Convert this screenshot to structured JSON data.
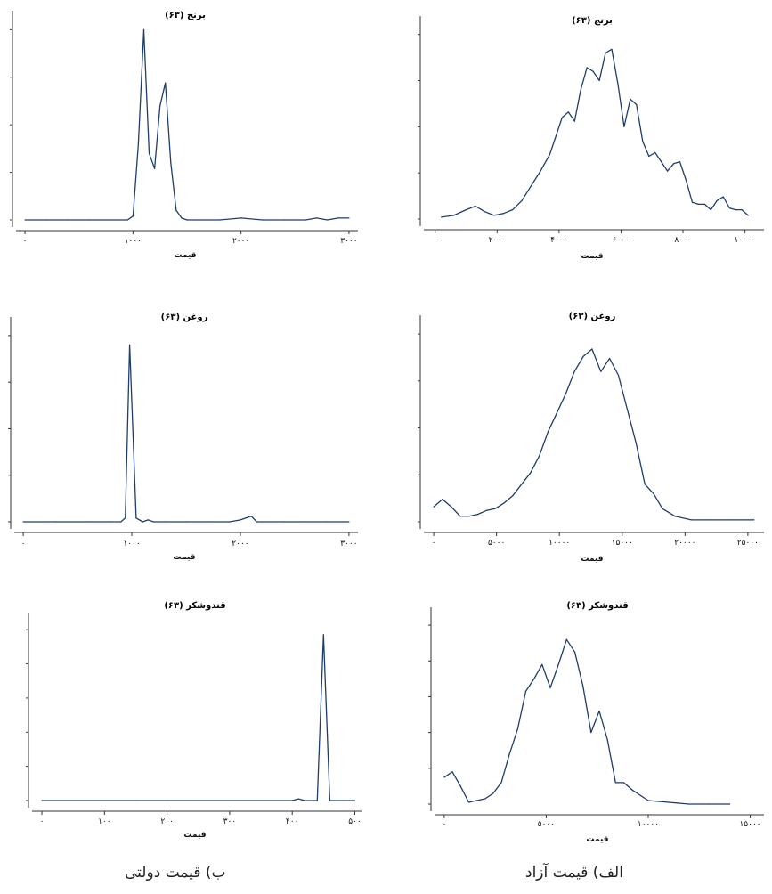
{
  "captions": {
    "left": "ب) قیمت دولتی",
    "right": "الف) قیمت آزاد"
  },
  "chart_data": [
    {
      "id": "rice-govt",
      "type": "line",
      "title": "برنج (۶۳)",
      "xlabel": "قیمت",
      "ylabel": "",
      "xlim": [
        -50,
        3050
      ],
      "ylim": [
        0,
        1.1
      ],
      "xticks": [
        0,
        1000,
        2000,
        3000
      ],
      "xtick_labels": [
        "۰",
        "۱۰۰۰",
        "۲۰۰۰",
        "۳۰۰۰"
      ],
      "yticks": [
        0,
        0.25,
        0.5,
        0.75,
        1.0
      ],
      "series": [
        {
          "x": [
            0,
            200,
            400,
            600,
            800,
            950,
            1000,
            1050,
            1100,
            1150,
            1200,
            1250,
            1300,
            1350,
            1400,
            1450,
            1500,
            1600,
            1800,
            2000,
            2200,
            2400,
            2600,
            2700,
            2800,
            2900,
            3000
          ],
          "y": [
            0.0,
            0.0,
            0.0,
            0.0,
            0.0,
            0.0,
            0.02,
            0.4,
            1.0,
            0.35,
            0.27,
            0.6,
            0.72,
            0.3,
            0.05,
            0.01,
            0.0,
            0.0,
            0.0,
            0.01,
            0.0,
            0.0,
            0.0,
            0.01,
            0.0,
            0.01,
            0.01
          ]
        }
      ]
    },
    {
      "id": "rice-free",
      "type": "line",
      "title": "برنج (۶۳)",
      "xlabel": "قیمت",
      "ylabel": "",
      "xlim": [
        -250,
        10500
      ],
      "ylim": [
        0,
        1.1
      ],
      "xticks": [
        0,
        2000,
        4000,
        6000,
        8000,
        10000
      ],
      "xtick_labels": [
        "۰",
        "۲۰۰۰",
        "۴۰۰۰",
        "۶۰۰۰",
        "۸۰۰۰",
        "۱۰۰۰۰"
      ],
      "yticks": [
        0,
        0.25,
        0.5,
        0.75,
        1.0
      ],
      "series": [
        {
          "x": [
            200,
            600,
            1000,
            1300,
            1600,
            1900,
            2200,
            2500,
            2800,
            3100,
            3400,
            3700,
            3900,
            4100,
            4300,
            4500,
            4700,
            4900,
            5100,
            5300,
            5500,
            5700,
            5900,
            6100,
            6300,
            6500,
            6700,
            6900,
            7100,
            7300,
            7500,
            7700,
            7900,
            8100,
            8300,
            8500,
            8700,
            8900,
            9100,
            9300,
            9500,
            9700,
            9900,
            10100
          ],
          "y": [
            0.01,
            0.02,
            0.05,
            0.07,
            0.04,
            0.02,
            0.03,
            0.05,
            0.1,
            0.18,
            0.26,
            0.35,
            0.45,
            0.55,
            0.58,
            0.53,
            0.7,
            0.82,
            0.8,
            0.75,
            0.9,
            0.92,
            0.73,
            0.5,
            0.65,
            0.62,
            0.42,
            0.34,
            0.36,
            0.31,
            0.26,
            0.3,
            0.31,
            0.21,
            0.09,
            0.08,
            0.08,
            0.05,
            0.1,
            0.12,
            0.06,
            0.05,
            0.05,
            0.02
          ]
        }
      ]
    },
    {
      "id": "oil-govt",
      "type": "line",
      "title": "روغن (۶۳)",
      "xlabel": "قیمت",
      "ylabel": "",
      "xlim": [
        -50,
        3050
      ],
      "ylim": [
        0,
        1.1
      ],
      "xticks": [
        0,
        1000,
        2000,
        3000
      ],
      "xtick_labels": [
        "۰",
        "۱۰۰۰",
        "۲۰۰۰",
        "۳۰۰۰"
      ],
      "yticks": [
        0,
        0.25,
        0.5,
        0.75,
        1.0
      ],
      "series": [
        {
          "x": [
            0,
            300,
            600,
            800,
            900,
            940,
            980,
            1040,
            1100,
            1150,
            1200,
            1300,
            1500,
            1700,
            1900,
            2000,
            2050,
            2100,
            2150,
            2200,
            2400,
            2600,
            2800,
            3000
          ],
          "y": [
            0.0,
            0.0,
            0.0,
            0.0,
            0.0,
            0.02,
            0.95,
            0.02,
            0.0,
            0.01,
            0.0,
            0.0,
            0.0,
            0.0,
            0.0,
            0.01,
            0.02,
            0.03,
            0.0,
            0.0,
            0.0,
            0.0,
            0.0,
            0.0
          ]
        }
      ]
    },
    {
      "id": "oil-free",
      "type": "line",
      "title": "روغن (۶۳)",
      "xlabel": "قیمت",
      "ylabel": "",
      "xlim": [
        -500,
        26000
      ],
      "ylim": [
        0,
        1.1
      ],
      "xticks": [
        0,
        5000,
        10000,
        15000,
        20000,
        25000
      ],
      "xtick_labels": [
        "۰",
        "۵۰۰۰",
        "۱۰۰۰۰",
        "۱۵۰۰۰",
        "۲۰۰۰۰",
        "۲۵۰۰۰"
      ],
      "yticks": [
        0,
        0.25,
        0.5,
        0.75,
        1.0
      ],
      "series": [
        {
          "x": [
            0,
            700,
            1400,
            2100,
            2800,
            3500,
            4200,
            4900,
            5600,
            6300,
            7000,
            7700,
            8400,
            9100,
            9800,
            10500,
            11200,
            11900,
            12600,
            13300,
            14000,
            14700,
            15400,
            16100,
            16800,
            17500,
            18200,
            19200,
            20500,
            22000,
            23500,
            25000,
            25500
          ],
          "y": [
            0.08,
            0.12,
            0.08,
            0.03,
            0.03,
            0.04,
            0.06,
            0.07,
            0.1,
            0.14,
            0.2,
            0.26,
            0.35,
            0.48,
            0.58,
            0.68,
            0.8,
            0.88,
            0.92,
            0.8,
            0.87,
            0.78,
            0.6,
            0.42,
            0.2,
            0.15,
            0.07,
            0.03,
            0.01,
            0.01,
            0.01,
            0.01,
            0.01
          ]
        }
      ]
    },
    {
      "id": "sugar-govt",
      "type": "line",
      "title": "قندوشکر (۶۳)",
      "xlabel": "قیمت",
      "ylabel": "",
      "xlim": [
        -10,
        505
      ],
      "ylim": [
        0,
        1.1
      ],
      "xticks": [
        0,
        100,
        200,
        300,
        400,
        500
      ],
      "xtick_labels": [
        "۰",
        "۱۰۰",
        "۲۰۰",
        "۳۰۰",
        "۴۰۰",
        "۵۰۰"
      ],
      "yticks": [
        0,
        0.2,
        0.4,
        0.6,
        0.8,
        1.0
      ],
      "series": [
        {
          "x": [
            0,
            50,
            100,
            150,
            200,
            250,
            300,
            350,
            400,
            410,
            420,
            430,
            440,
            450,
            460,
            470,
            480,
            500
          ],
          "y": [
            0.0,
            0.0,
            0.0,
            0.0,
            0.0,
            0.0,
            0.0,
            0.0,
            0.0,
            0.01,
            0.0,
            0.0,
            0.0,
            0.97,
            0.0,
            0.0,
            0.0,
            0.0
          ]
        }
      ]
    },
    {
      "id": "sugar-free",
      "type": "line",
      "title": "قندوشکر (۶۳)",
      "xlabel": "قیمت",
      "ylabel": "",
      "xlim": [
        -300,
        15500
      ],
      "ylim": [
        0,
        1.1
      ],
      "xticks": [
        0,
        5000,
        10000,
        15000
      ],
      "xtick_labels": [
        "۰",
        "۵۰۰۰",
        "۱۰۰۰۰",
        "۱۵۰۰۰"
      ],
      "yticks": [
        0,
        0.2,
        0.4,
        0.6,
        0.8,
        1.0
      ],
      "series": [
        {
          "x": [
            0,
            400,
            800,
            1200,
            1600,
            2000,
            2400,
            2800,
            3200,
            3600,
            4000,
            4400,
            4800,
            5200,
            5600,
            6000,
            6400,
            6800,
            7200,
            7600,
            8000,
            8400,
            8800,
            9200,
            9600,
            10000,
            11000,
            12000,
            13000,
            14000
          ],
          "y": [
            0.15,
            0.18,
            0.1,
            0.01,
            0.02,
            0.03,
            0.06,
            0.12,
            0.28,
            0.42,
            0.63,
            0.7,
            0.78,
            0.65,
            0.78,
            0.92,
            0.85,
            0.66,
            0.4,
            0.52,
            0.36,
            0.12,
            0.12,
            0.08,
            0.05,
            0.02,
            0.01,
            0.0,
            0.0,
            0.0
          ]
        }
      ]
    }
  ]
}
